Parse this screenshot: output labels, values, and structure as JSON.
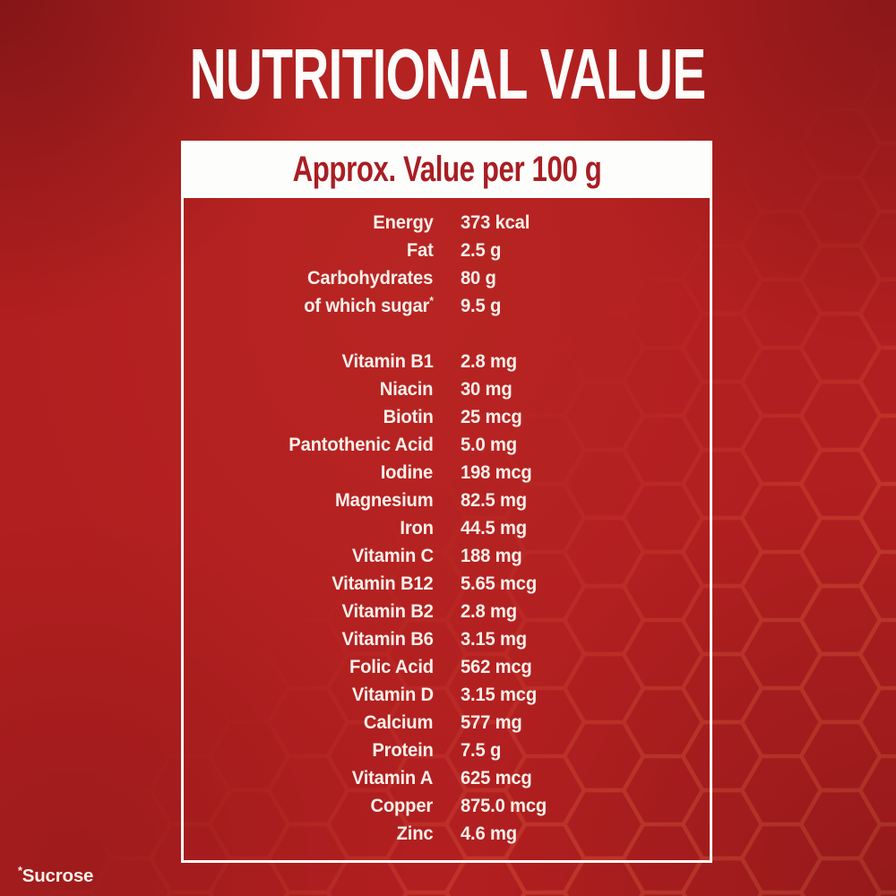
{
  "title": "NUTRITIONAL VALUE",
  "panel": {
    "header": "Approx. Value per 100 g",
    "rows": [
      {
        "label": "Energy",
        "value": "373 kcal"
      },
      {
        "label": "Fat",
        "value": "2.5 g"
      },
      {
        "label": "Carbohydrates",
        "value": "80 g"
      },
      {
        "label": "of which sugar",
        "label_sup": "*",
        "value": "9.5 g"
      },
      {
        "spacer": true
      },
      {
        "label": "Vitamin B1",
        "value": "2.8 mg"
      },
      {
        "label": "Niacin",
        "value": "30 mg"
      },
      {
        "label": "Biotin",
        "value": "25 mcg"
      },
      {
        "label": "Pantothenic Acid",
        "value": "5.0 mg"
      },
      {
        "label": "Iodine",
        "value": "198 mcg"
      },
      {
        "label": "Magnesium",
        "value": "82.5 mg"
      },
      {
        "label": "Iron",
        "value": "44.5 mg"
      },
      {
        "label": "Vitamin C",
        "value": "188 mg"
      },
      {
        "label": "Vitamin B12",
        "value": "5.65 mcg"
      },
      {
        "label": "Vitamin B2",
        "value": "2.8 mg"
      },
      {
        "label": "Vitamin B6",
        "value": "3.15 mg"
      },
      {
        "label": "Folic Acid",
        "value": "562 mcg"
      },
      {
        "label": "Vitamin D",
        "value": "3.15 mcg"
      },
      {
        "label": "Calcium",
        "value": "577 mg"
      },
      {
        "label": "Protein",
        "value": "7.5 g"
      },
      {
        "label": "Vitamin A",
        "value": "625 mcg"
      },
      {
        "label": "Copper",
        "value": "875.0 mcg"
      },
      {
        "label": "Zinc",
        "value": "4.6 mg"
      }
    ]
  },
  "footnote": {
    "marker": "*",
    "text": "Sucrose"
  },
  "colors": {
    "background": "#b21f20",
    "honeycomb_line": "#dd5a3c",
    "header_bar": "#fdfdfc",
    "header_text": "#a81e23",
    "table_text": "#f8efe9",
    "title_text": "#fdfcfa",
    "panel_border": "#fbf8f5"
  }
}
